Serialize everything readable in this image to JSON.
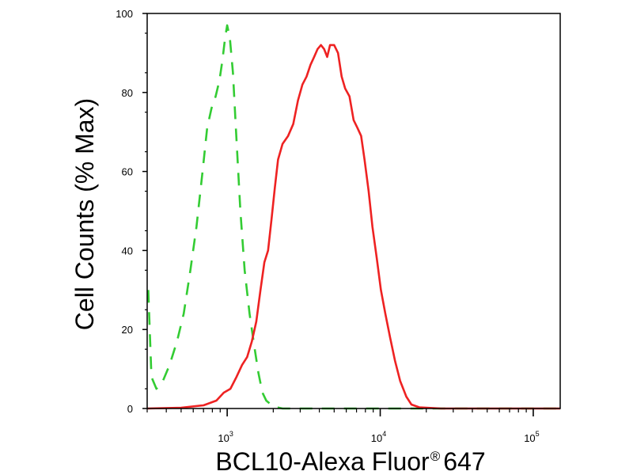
{
  "chart_data": {
    "type": "line",
    "title": "",
    "xlabel": "BCL10-Alexa Fluor",
    "xlabel_mark": "®",
    "xlabel_tail": "647",
    "ylabel": "Cell Counts (% Max)",
    "x_scale": "log",
    "xlim": [
      300,
      150000
    ],
    "ylim": [
      0,
      100
    ],
    "grid": false,
    "legend": "none",
    "y_ticks": [
      {
        "value": 0,
        "label": "0"
      },
      {
        "value": 20,
        "label": "20"
      },
      {
        "value": 40,
        "label": "40"
      },
      {
        "value": 60,
        "label": "60"
      },
      {
        "value": 80,
        "label": "80"
      },
      {
        "value": 100,
        "label": "100"
      }
    ],
    "x_ticks": [
      {
        "value": 1000,
        "base": "10",
        "exp": "3"
      },
      {
        "value": 10000,
        "base": "10",
        "exp": "4"
      },
      {
        "value": 100000,
        "base": "10",
        "exp": "5"
      }
    ],
    "series": [
      {
        "color": "#33cc33",
        "style": "dashed",
        "points": [
          [
            305,
            30
          ],
          [
            320,
            8
          ],
          [
            345,
            5
          ],
          [
            380,
            7
          ],
          [
            420,
            11
          ],
          [
            470,
            17
          ],
          [
            520,
            24
          ],
          [
            575,
            35
          ],
          [
            630,
            46
          ],
          [
            690,
            60
          ],
          [
            740,
            71
          ],
          [
            790,
            76
          ],
          [
            840,
            79
          ],
          [
            890,
            83
          ],
          [
            930,
            88
          ],
          [
            970,
            94
          ],
          [
            1000,
            97
          ],
          [
            1040,
            94
          ],
          [
            1090,
            85
          ],
          [
            1150,
            68
          ],
          [
            1220,
            50
          ],
          [
            1300,
            35
          ],
          [
            1400,
            24
          ],
          [
            1500,
            16
          ],
          [
            1600,
            9
          ],
          [
            1700,
            4
          ],
          [
            1800,
            2
          ],
          [
            2000,
            0.5
          ],
          [
            2300,
            0
          ],
          [
            5000,
            0
          ],
          [
            20000,
            0
          ],
          [
            150000,
            0
          ]
        ]
      },
      {
        "color": "#ee2222",
        "style": "solid",
        "points": [
          [
            300,
            0
          ],
          [
            500,
            0.2
          ],
          [
            700,
            0.8
          ],
          [
            850,
            2
          ],
          [
            950,
            4
          ],
          [
            1050,
            5
          ],
          [
            1150,
            8
          ],
          [
            1250,
            11
          ],
          [
            1350,
            13
          ],
          [
            1450,
            17
          ],
          [
            1550,
            22
          ],
          [
            1650,
            30
          ],
          [
            1750,
            37
          ],
          [
            1850,
            40
          ],
          [
            1950,
            48
          ],
          [
            2050,
            56
          ],
          [
            2150,
            63
          ],
          [
            2300,
            67
          ],
          [
            2500,
            69
          ],
          [
            2700,
            72
          ],
          [
            2900,
            78
          ],
          [
            3100,
            82
          ],
          [
            3300,
            84
          ],
          [
            3500,
            87
          ],
          [
            3700,
            89
          ],
          [
            3900,
            91
          ],
          [
            4100,
            92
          ],
          [
            4300,
            91
          ],
          [
            4500,
            89
          ],
          [
            4700,
            92
          ],
          [
            5000,
            92
          ],
          [
            5300,
            90
          ],
          [
            5600,
            84
          ],
          [
            5900,
            81
          ],
          [
            6300,
            79
          ],
          [
            6700,
            73
          ],
          [
            7100,
            71
          ],
          [
            7500,
            69
          ],
          [
            7900,
            63
          ],
          [
            8400,
            55
          ],
          [
            8900,
            46
          ],
          [
            9500,
            38
          ],
          [
            10100,
            30
          ],
          [
            10800,
            24
          ],
          [
            11600,
            18
          ],
          [
            12500,
            12
          ],
          [
            13500,
            7
          ],
          [
            14800,
            3
          ],
          [
            16000,
            1
          ],
          [
            18000,
            0.3
          ],
          [
            25000,
            0
          ],
          [
            50000,
            0
          ],
          [
            150000,
            0
          ]
        ]
      }
    ]
  }
}
